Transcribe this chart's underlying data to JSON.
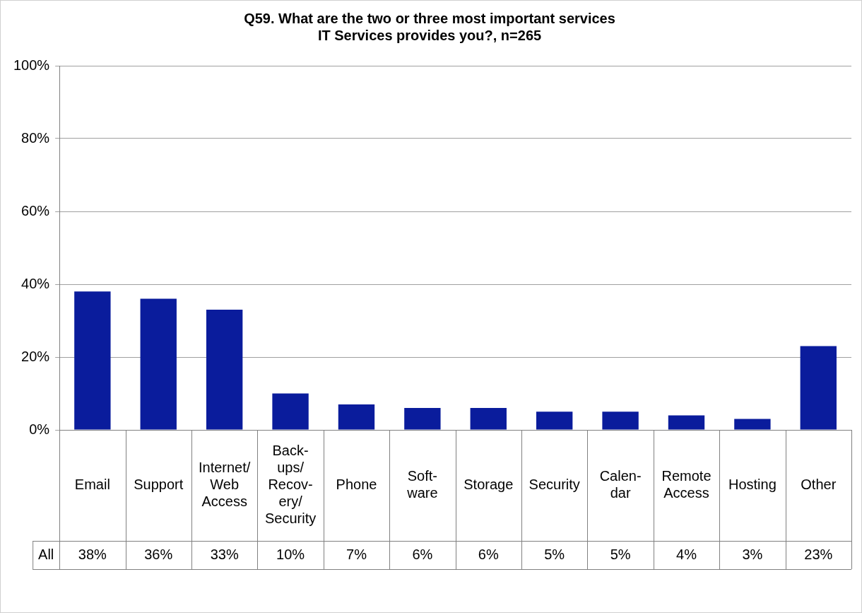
{
  "chart_data": {
    "type": "bar",
    "title": "Q59. What are the two or three most important services\nIT Services provides you?, n=265",
    "categories": [
      "Email",
      "Support",
      "Internet/\nWeb\nAccess",
      "Back-\nups/\nRecov-\nery/\nSecurity",
      "Phone",
      "Soft-\nware",
      "Storage",
      "Security",
      "Calen-\ndar",
      "Remote\nAccess",
      "Hosting",
      "Other"
    ],
    "series": [
      {
        "name": "All",
        "color": "#0a1c9c",
        "values": [
          38,
          36,
          33,
          10,
          7,
          6,
          6,
          5,
          5,
          4,
          3,
          23
        ],
        "value_labels": [
          "38%",
          "36%",
          "33%",
          "10%",
          "7%",
          "6%",
          "6%",
          "5%",
          "5%",
          "4%",
          "3%",
          "23%"
        ]
      }
    ],
    "ylim": [
      0,
      100
    ],
    "yticks": [
      {
        "value": 0,
        "label": "0%"
      },
      {
        "value": 20,
        "label": "20%"
      },
      {
        "value": 40,
        "label": "40%"
      },
      {
        "value": 60,
        "label": "60%"
      },
      {
        "value": 80,
        "label": "80%"
      },
      {
        "value": 100,
        "label": "100%"
      }
    ],
    "grid": "y",
    "legend": false
  }
}
